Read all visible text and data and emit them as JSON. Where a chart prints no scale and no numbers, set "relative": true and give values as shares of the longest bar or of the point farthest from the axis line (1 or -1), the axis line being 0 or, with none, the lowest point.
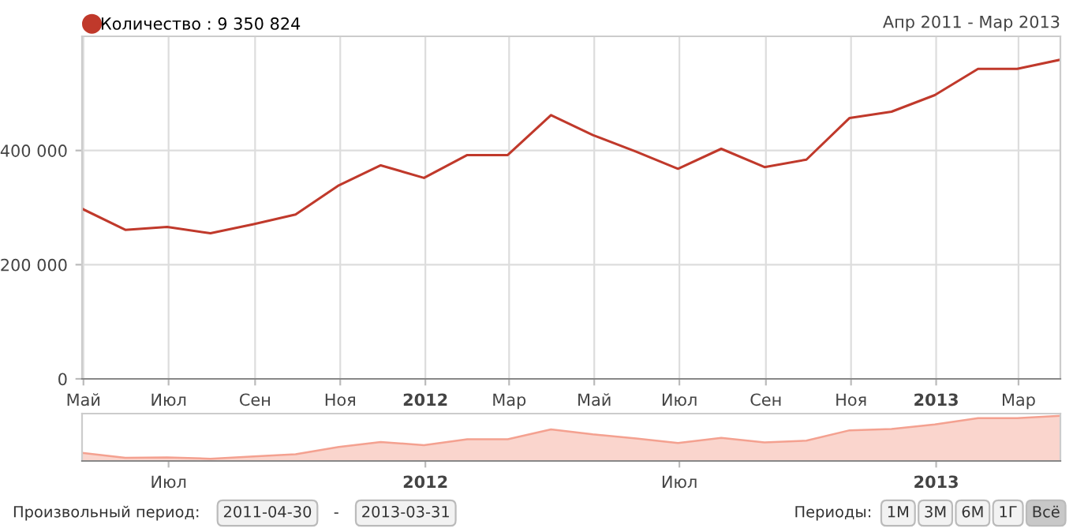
{
  "chart_data": [
    {
      "type": "line",
      "subtitle": "Апр 2011 - Мар 2013",
      "x": [
        "2011-04-30",
        "2011-05-31",
        "2011-06-30",
        "2011-07-31",
        "2011-08-31",
        "2011-09-30",
        "2011-10-31",
        "2011-11-30",
        "2011-12-31",
        "2012-01-31",
        "2012-02-29",
        "2012-03-31",
        "2012-04-30",
        "2012-05-31",
        "2012-06-30",
        "2012-07-31",
        "2012-08-31",
        "2012-09-30",
        "2012-10-31",
        "2012-11-30",
        "2012-12-31",
        "2013-01-31",
        "2013-02-28",
        "2013-03-31"
      ],
      "series": [
        {
          "name": "Количество : 9 350 824",
          "color": "#c0392b",
          "values": [
            298000,
            261000,
            266000,
            255000,
            271000,
            288000,
            339000,
            374000,
            352000,
            392000,
            392000,
            462000,
            427000,
            398000,
            368000,
            403000,
            371000,
            384000,
            457000,
            468000,
            497000,
            543000,
            543000,
            559000
          ]
        }
      ],
      "xlim": [
        "2011-04-30",
        "2013-03-31"
      ],
      "xticks": [
        {
          "value": "2011-05-01",
          "label": "Май"
        },
        {
          "value": "2011-07-01",
          "label": "Июл"
        },
        {
          "value": "2011-09-01",
          "label": "Сен"
        },
        {
          "value": "2011-11-01",
          "label": "Ноя"
        },
        {
          "value": "2012-01-01",
          "label": "2012"
        },
        {
          "value": "2012-03-01",
          "label": "Мар"
        },
        {
          "value": "2012-05-01",
          "label": "Май"
        },
        {
          "value": "2012-07-01",
          "label": "Июл"
        },
        {
          "value": "2012-09-01",
          "label": "Сен"
        },
        {
          "value": "2012-11-01",
          "label": "Ноя"
        },
        {
          "value": "2013-01-01",
          "label": "2013"
        },
        {
          "value": "2013-03-01",
          "label": "Мар"
        }
      ],
      "ylim": [
        0,
        600000
      ],
      "yticks": [
        0,
        {
          "value": 200000,
          "label": "200 000"
        },
        {
          "value": 400000,
          "label": "400 000"
        }
      ],
      "grid": true,
      "legend": "top left",
      "marker": "none",
      "line_style": "solid",
      "annotations": [
        "Произвольный период:",
        "2011-04-30",
        "-",
        "2013-03-31",
        "Периоды:",
        "1M",
        "3M",
        "6M",
        "1Г",
        "Всё"
      ]
    },
    {
      "type": "area",
      "relative": true,
      "x": [
        "2011-04-30",
        "2011-05-31",
        "2011-06-30",
        "2011-07-31",
        "2011-08-31",
        "2011-09-30",
        "2011-10-31",
        "2011-11-30",
        "2011-12-31",
        "2012-01-31",
        "2012-02-29",
        "2012-03-31",
        "2012-04-30",
        "2012-05-31",
        "2012-06-30",
        "2012-07-31",
        "2012-08-31",
        "2012-09-30",
        "2012-10-31",
        "2012-11-30",
        "2012-12-31",
        "2013-01-31",
        "2013-02-28",
        "2013-03-31"
      ],
      "series": [
        {
          "color": "#f4a190",
          "values": [
            0.18,
            0.07,
            0.08,
            0.05,
            0.1,
            0.15,
            0.31,
            0.42,
            0.35,
            0.48,
            0.48,
            0.7,
            0.59,
            0.5,
            0.4,
            0.51,
            0.41,
            0.45,
            0.68,
            0.71,
            0.81,
            0.95,
            0.95,
            1
          ]
        }
      ],
      "xlim": [
        "2011-04-30",
        "2013-03-31"
      ],
      "xticks": [
        {
          "value": "2011-07-01",
          "label": "Июл"
        },
        {
          "value": "2012-01-01",
          "label": "2012"
        },
        {
          "value": "2012-07-01",
          "label": "Июл"
        },
        {
          "value": "2013-01-01",
          "label": "2013"
        }
      ],
      "tick_labels": "x",
      "grid": false,
      "legend": false
    }
  ]
}
